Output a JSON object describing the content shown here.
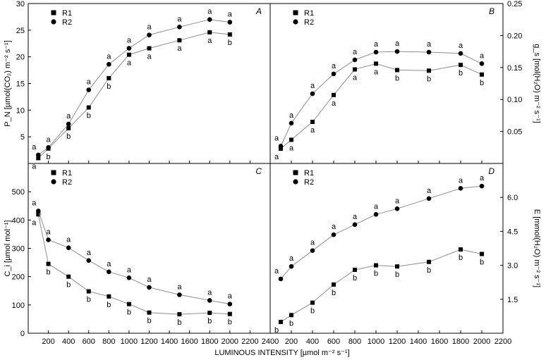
{
  "x_axis_label": "LUMINOUS INTENSITY [µmol m⁻² s⁻¹]",
  "x_ticks_left": [
    "200",
    "400",
    "600",
    "800",
    "1000",
    "1200",
    "1400",
    "1600",
    "1800",
    "2000",
    "2200",
    "2400"
  ],
  "x_ticks_right": [
    "200",
    "400",
    "600",
    "800",
    "1000",
    "1200",
    "1400",
    "1600",
    "1800",
    "2000",
    "2200"
  ],
  "chart_data": [
    {
      "type": "line",
      "panel_letter": "A",
      "ylabel": "P_N [µmol(CO₂) m⁻² s⁻¹]",
      "y_axis_side": "left",
      "xlim": [
        0,
        2400
      ],
      "ylim": [
        0,
        30
      ],
      "yticks": [
        5,
        10,
        15,
        20,
        25,
        30
      ],
      "x": [
        100,
        200,
        400,
        600,
        800,
        1000,
        1200,
        1500,
        1800,
        2000
      ],
      "series": [
        {
          "name": "R1",
          "marker": "square",
          "values": [
            1.0,
            2.8,
            6.6,
            10.5,
            16.0,
            20.4,
            21.6,
            23.1,
            24.6,
            24.2
          ],
          "labels": [
            "a",
            "b",
            "b",
            "b",
            "b",
            "a",
            "a",
            "a",
            "a",
            "b"
          ]
        },
        {
          "name": "R2",
          "marker": "circle",
          "values": [
            1.6,
            3.0,
            7.4,
            13.8,
            18.6,
            21.6,
            24.1,
            25.6,
            27.0,
            26.5
          ],
          "labels": [
            "a",
            "a",
            "a",
            "a",
            "a",
            "a",
            "a",
            "a",
            "a",
            "a"
          ]
        }
      ]
    },
    {
      "type": "line",
      "panel_letter": "B",
      "ylabel": "g_s [mol(H₂O) m⁻² s⁻¹]",
      "y_axis_side": "right",
      "xlim": [
        0,
        2200
      ],
      "ylim": [
        0,
        0.25
      ],
      "yticks": [
        0.05,
        0.1,
        0.15,
        0.2,
        0.25
      ],
      "ytick_labels": [
        "0.05",
        "0.10",
        "0.15",
        "0.20",
        "0.25"
      ],
      "x": [
        100,
        200,
        400,
        600,
        800,
        1000,
        1200,
        1500,
        1800,
        2000
      ],
      "series": [
        {
          "name": "R1",
          "marker": "square",
          "values": [
            0.023,
            0.037,
            0.065,
            0.107,
            0.147,
            0.156,
            0.146,
            0.145,
            0.154,
            0.139
          ],
          "labels": [
            "a",
            "a",
            "a",
            "a",
            "a",
            "a",
            "b",
            "b",
            "b",
            "b"
          ]
        },
        {
          "name": "R2",
          "marker": "circle",
          "values": [
            0.027,
            0.063,
            0.109,
            0.14,
            0.162,
            0.174,
            0.175,
            0.174,
            0.172,
            0.156
          ],
          "labels": [
            "a",
            "a",
            "a",
            "a",
            "a",
            "a",
            "a",
            "a",
            "a",
            "a"
          ]
        }
      ]
    },
    {
      "type": "line",
      "panel_letter": "C",
      "ylabel": "C_i [µmol mol⁻¹]",
      "y_axis_side": "left",
      "xlim": [
        0,
        2400
      ],
      "ylim": [
        0,
        600
      ],
      "yticks": [
        0,
        100,
        200,
        300,
        400,
        500
      ],
      "x": [
        100,
        200,
        400,
        600,
        800,
        1000,
        1200,
        1500,
        1800,
        2000
      ],
      "series": [
        {
          "name": "R1",
          "marker": "square",
          "values": [
            420,
            245,
            200,
            148,
            130,
            103,
            73,
            67,
            72,
            68
          ],
          "labels": [
            "a",
            "b",
            "b",
            "b",
            "b",
            "b",
            "b",
            "b",
            "b",
            "b"
          ]
        },
        {
          "name": "R2",
          "marker": "circle",
          "values": [
            432,
            330,
            302,
            257,
            217,
            196,
            162,
            136,
            116,
            103
          ],
          "labels": [
            "a",
            "a",
            "a",
            "a",
            "a",
            "a",
            "a",
            "a",
            "a",
            "a"
          ]
        }
      ]
    },
    {
      "type": "line",
      "panel_letter": "D",
      "ylabel": "E [mmol(H₂O) m⁻² s⁻¹]",
      "y_axis_side": "right",
      "xlim": [
        0,
        2200
      ],
      "ylim": [
        0,
        7.5
      ],
      "yticks": [
        1.5,
        3.0,
        4.5,
        6.0
      ],
      "ytick_labels": [
        "1.5",
        "3.0",
        "4.5",
        "6.0"
      ],
      "x": [
        100,
        200,
        400,
        600,
        800,
        1000,
        1200,
        1500,
        1800,
        2000
      ],
      "series": [
        {
          "name": "R1",
          "marker": "square",
          "values": [
            0.5,
            0.8,
            1.35,
            2.15,
            2.8,
            3.0,
            2.95,
            3.15,
            3.7,
            3.5
          ],
          "labels": [
            "b",
            "b",
            "b",
            "b",
            "b",
            "b",
            "b",
            "b",
            "b",
            "b"
          ]
        },
        {
          "name": "R2",
          "marker": "circle",
          "values": [
            2.4,
            2.95,
            3.65,
            4.35,
            4.8,
            5.25,
            5.5,
            5.95,
            6.4,
            6.5
          ],
          "labels": [
            "a",
            "a",
            "a",
            "a",
            "a",
            "a",
            "a",
            "a",
            "a",
            "a"
          ]
        }
      ]
    }
  ]
}
